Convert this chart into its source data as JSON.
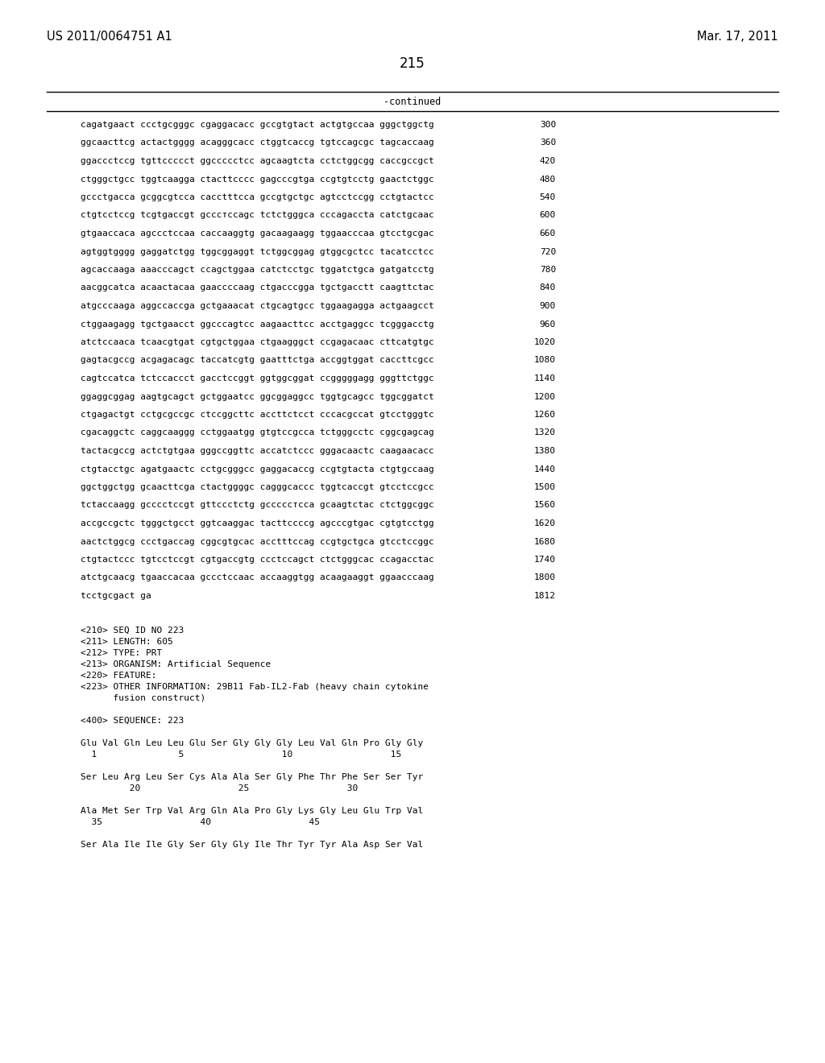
{
  "header_left": "US 2011/0064751 A1",
  "header_right": "Mar. 17, 2011",
  "page_number": "215",
  "continued_label": "-continued",
  "background_color": "#ffffff",
  "text_color": "#000000",
  "sequence_lines": [
    [
      "cagatgaact ccctgcgggc cgaggacacc gccgtgtact actgtgccaa gggctggctg",
      "300"
    ],
    [
      "ggcaacttcg actactgggg acagggcacc ctggtcaccg tgtccagcgc tagcaccaag",
      "360"
    ],
    [
      "ggaccctccg tgttccccct ggccccctcc agcaagtcta cctctggcgg caccgccgct",
      "420"
    ],
    [
      "ctgggctgcc tggtcaagga ctacttcccc gagcccgtga ccgtgtcctg gaactctggc",
      "480"
    ],
    [
      "gccctgacca gcggcgtcca cacctttcca gccgtgctgc agtcctccgg cctgtactcc",
      "540"
    ],
    [
      "ctgtcctccg tcgtgaccgt gcccтccagc tctctgggca cccagaccta catctgcaac",
      "600"
    ],
    [
      "gtgaaccaca agccctccaa caccaaggtg gacaagaagg tggaacccaa gtcctgcgac",
      "660"
    ],
    [
      "agtggtgggg gaggatctgg tggcggaggt tctggcggag gtggcgctcc tacatcctcc",
      "720"
    ],
    [
      "agcaccaaga aaacccagct ccagctggaa catctcctgc tggatctgca gatgatcctg",
      "780"
    ],
    [
      "aacggcatca acaactacaa gaaccccaag ctgacccgga tgctgacctt caagttctac",
      "840"
    ],
    [
      "atgcccaaga aggccaccga gctgaaacat ctgcagtgcc tggaagagga actgaagcct",
      "900"
    ],
    [
      "ctggaagagg tgctgaacct ggcccagtcc aagaacttcc acctgaggcc tcgggacctg",
      "960"
    ],
    [
      "atctccaaca tcaacgtgat cgtgctggaa ctgaagggct ccgagacaac cttcatgtgc",
      "1020"
    ],
    [
      "gagtacgccg acgagacagc taccatcgtg gaatttctga accggtggat caccttcgcc",
      "1080"
    ],
    [
      "cagtccatca tctccaccct gacctccggt ggtggcggat ccgggggagg gggttctggc",
      "1140"
    ],
    [
      "ggaggcggag aagtgcagct gctggaatcc ggcggaggcc tggtgcagcc tggcggatct",
      "1200"
    ],
    [
      "ctgagactgt cctgcgccgc ctccggcttc accttctcct cccacgccat gtcctgggtc",
      "1260"
    ],
    [
      "cgacaggctc caggcaaggg cctggaatgg gtgtccgcca tctgggcctc cggcgagcag",
      "1320"
    ],
    [
      "tactacgccg actctgtgaa gggccggttc accatctccc gggacaactc caagaacacc",
      "1380"
    ],
    [
      "ctgtacctgc agatgaactc cctgcgggcc gaggacaccg ccgtgtacta ctgtgccaag",
      "1440"
    ],
    [
      "ggctggctgg gcaacttcga ctactggggc cagggcaccc tggtcaccgt gtcctccgcc",
      "1500"
    ],
    [
      "tctaccaagg gcccctccgt gttccctctg gcccccтcca gcaagtctac ctctggcggc",
      "1560"
    ],
    [
      "accgccgctc tgggctgcct ggtcaaggac tacttccccg agcccgtgac cgtgtcctgg",
      "1620"
    ],
    [
      "aactctggcg ccctgaccag cggcgtgcac acctttccag ccgtgctgca gtcctccggc",
      "1680"
    ],
    [
      "ctgtactccc tgtcctccgt cgtgaccgtg ccctccagct ctctgggcac ccagacctac",
      "1740"
    ],
    [
      "atctgcaacg tgaaccacaa gccctccaac accaaggtgg acaagaaggt ggaacccaag",
      "1800"
    ],
    [
      "tcctgcgact ga",
      "1812"
    ]
  ],
  "metadata_lines": [
    "<210> SEQ ID NO 223",
    "<211> LENGTH: 605",
    "<212> TYPE: PRT",
    "<213> ORGANISM: Artificial Sequence",
    "<220> FEATURE:",
    "<223> OTHER INFORMATION: 29B11 Fab-IL2-Fab (heavy chain cytokine",
    "      fusion construct)",
    "",
    "<400> SEQUENCE: 223",
    "",
    "Glu Val Gln Leu Leu Glu Ser Gly Gly Gly Leu Val Gln Pro Gly Gly",
    "  1               5                  10                  15",
    "",
    "Ser Leu Arg Leu Ser Cys Ala Ala Ser Gly Phe Thr Phe Ser Ser Tyr",
    "         20                  25                  30",
    "",
    "Ala Met Ser Trp Val Arg Gln Ala Pro Gly Lys Gly Leu Glu Trp Val",
    "  35                  40                  45",
    "",
    "Ser Ala Ile Ile Gly Ser Gly Gly Ile Thr Tyr Tyr Ala Asp Ser Val"
  ],
  "figsize": [
    10.24,
    13.2
  ],
  "dpi": 100
}
